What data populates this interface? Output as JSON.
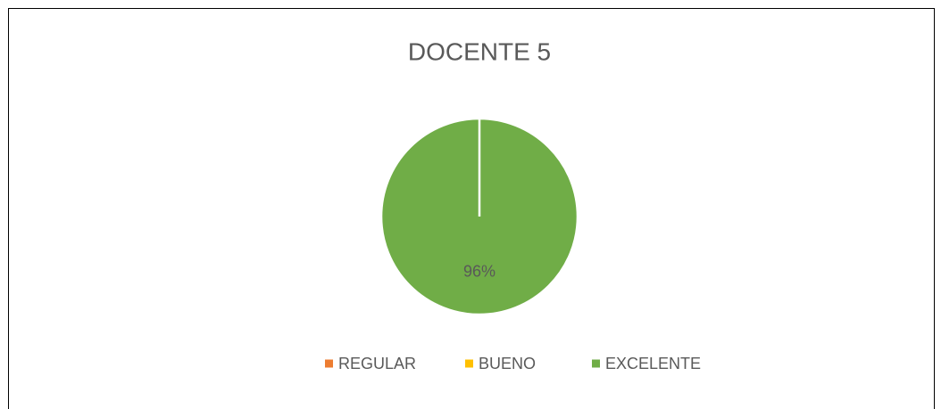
{
  "chart_data": {
    "type": "pie",
    "title": "DOCENTE 5",
    "categories": [
      "REGULAR",
      "BUENO",
      "EXCELENTE"
    ],
    "values": [
      0,
      0,
      96
    ],
    "value_labels": [
      null,
      null,
      "96%"
    ],
    "colors": [
      "#ed7d31",
      "#ffc000",
      "#70ad47"
    ],
    "legend": "bottom"
  }
}
